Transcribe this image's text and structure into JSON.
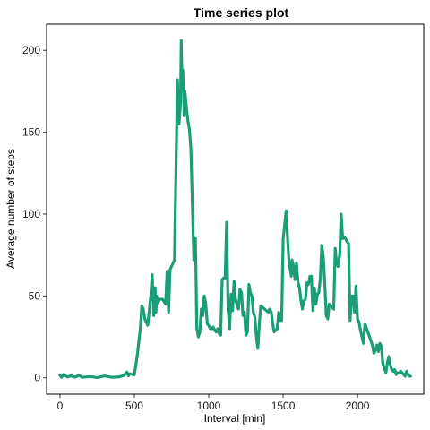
{
  "chart_data": {
    "type": "line",
    "title": "Time series plot",
    "xlabel": "Interval [min]",
    "ylabel": "Average number of steps",
    "xlim": [
      -90,
      2445
    ],
    "ylim": [
      -10,
      216
    ],
    "x_ticks": [
      0,
      500,
      1000,
      1500,
      2000
    ],
    "y_ticks": [
      0,
      50,
      100,
      150,
      200
    ],
    "grid": false,
    "legend": "none",
    "colors": {
      "line": "#1b9e77",
      "panel_border": "#000000",
      "background": "#ffffff"
    },
    "series": [
      {
        "x": [
          0,
          10,
          25,
          50,
          75,
          100,
          130,
          150,
          200,
          250,
          300,
          350,
          400,
          430,
          450,
          460,
          470,
          500,
          520,
          540,
          550,
          560,
          570,
          590,
          610,
          620,
          630,
          640,
          645,
          650,
          660,
          670,
          690,
          710,
          720,
          730,
          740,
          750,
          760,
          770,
          790,
          800,
          810,
          815,
          820,
          825,
          830,
          835,
          840,
          845,
          850,
          860,
          870,
          880,
          890,
          900,
          910,
          915,
          920,
          930,
          940,
          950,
          960,
          970,
          980,
          990,
          1000,
          1010,
          1020,
          1030,
          1040,
          1050,
          1060,
          1070,
          1080,
          1090,
          1100,
          1110,
          1120,
          1130,
          1140,
          1150,
          1160,
          1170,
          1180,
          1190,
          1200,
          1210,
          1220,
          1230,
          1240,
          1250,
          1260,
          1270,
          1280,
          1290,
          1300,
          1310,
          1320,
          1330,
          1340,
          1350,
          1400,
          1410,
          1420,
          1430,
          1440,
          1450,
          1460,
          1470,
          1480,
          1490,
          1500,
          1510,
          1520,
          1530,
          1540,
          1550,
          1555,
          1560,
          1570,
          1580,
          1590,
          1600,
          1610,
          1620,
          1630,
          1640,
          1650,
          1660,
          1670,
          1680,
          1690,
          1700,
          1710,
          1720,
          1730,
          1740,
          1750,
          1760,
          1770,
          1780,
          1790,
          1800,
          1810,
          1820,
          1830,
          1840,
          1850,
          1860,
          1870,
          1880,
          1890,
          1900,
          1910,
          1920,
          1930,
          1940,
          1950,
          1960,
          1970,
          1980,
          1990,
          2000,
          2010,
          2020,
          2030,
          2040,
          2050,
          2100,
          2110,
          2120,
          2130,
          2140,
          2150,
          2160,
          2170,
          2180,
          2190,
          2200,
          2210,
          2220,
          2230,
          2240,
          2250,
          2260,
          2270,
          2280,
          2290,
          2300,
          2310,
          2320,
          2330,
          2340,
          2350,
          2355
        ],
        "y": [
          1.7,
          0.3,
          2.1,
          0.5,
          1.2,
          0.4,
          1.5,
          0.3,
          0.8,
          0.2,
          1.1,
          0.3,
          0.6,
          1.5,
          3.5,
          1.2,
          2.5,
          1.8,
          14,
          30,
          44,
          42,
          36,
          32,
          50,
          63,
          38,
          55,
          40,
          50,
          46,
          48,
          48,
          45,
          65,
          40,
          66,
          68,
          70,
          72,
          182,
          155,
          167,
          206,
          180,
          188,
          179,
          160,
          175,
          170,
          165,
          157,
          152,
          140,
          105,
          72,
          85,
          60,
          30,
          25,
          28,
          42,
          38,
          50,
          45,
          33,
          32,
          30,
          30,
          31,
          29,
          28,
          30,
          27,
          26,
          60,
          61,
          61,
          95,
          42,
          30,
          51,
          41,
          59,
          48,
          44,
          42,
          54,
          52,
          38,
          40,
          26,
          28,
          57,
          52,
          50,
          40,
          37,
          25,
          18,
          33,
          44,
          40,
          42,
          40,
          33,
          28,
          29,
          30,
          40,
          35,
          35,
          85,
          93,
          102,
          85,
          70,
          65,
          62,
          72,
          68,
          60,
          70,
          58,
          55,
          47,
          42,
          47,
          48,
          58,
          57,
          62,
          62,
          41,
          55,
          45,
          51,
          52,
          61,
          81,
          74,
          57,
          38,
          36,
          45,
          44,
          43,
          42,
          79,
          70,
          68,
          75,
          100,
          85,
          86,
          85,
          83,
          82,
          35,
          50,
          50,
          40,
          56,
          36,
          34,
          29,
          25,
          21,
          33,
          20,
          15,
          17,
          20,
          16,
          21,
          19,
          9,
          6,
          3,
          9,
          13,
          8,
          5,
          4,
          5,
          2,
          3,
          3,
          4,
          3,
          2,
          1,
          4,
          2,
          1,
          1
        ]
      }
    ]
  }
}
